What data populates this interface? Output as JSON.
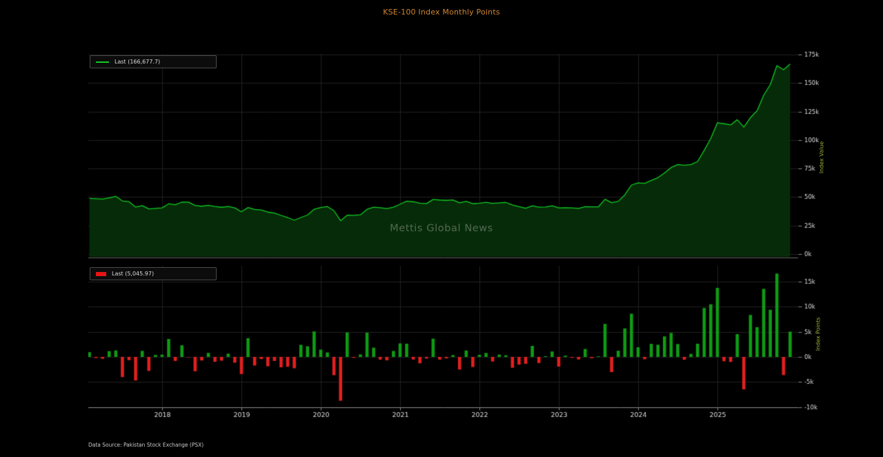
{
  "title": "KSE-100 Index Monthly Points",
  "watermark": "Mettis Global News",
  "footer": "Data Source: Pakistan Stock Exchange (PSX)",
  "panels": {
    "price": {
      "legend_label": "Last (166,677.7)",
      "ylabel": "Index Value"
    },
    "change": {
      "legend_label": "Last (5,045.97)",
      "ylabel": "Index Points"
    }
  },
  "colors": {
    "background": "#000000",
    "title": "#cf8532",
    "line": "#10cd24",
    "area_fill": "#062b08",
    "bar_up": "#0f9b14",
    "bar_down": "#e31f1f",
    "grid": "#202020",
    "spine": "#8c8c8c",
    "tick_label": "#dcdcdc",
    "axis_label": "#9aad3a"
  },
  "chart_data": [
    {
      "type": "line",
      "name": "KSE-100 monthly close (Index Value)",
      "start_month": "2017-01",
      "end_month": "2025-11",
      "frequency": "monthly",
      "prev_close": 47806.97,
      "last_value": 166677.7,
      "legend": "Last (166,677.7)",
      "ylabel": "Index Value",
      "ylim": [
        0,
        176000
      ],
      "ytick_values": [
        0,
        25000,
        50000,
        75000,
        100000,
        125000,
        150000,
        175000
      ],
      "ytick_labels": [
        "0k",
        "25k",
        "50k",
        "75k",
        "100k",
        "125k",
        "150k",
        "175k"
      ],
      "x_tick_years": [
        2018,
        2019,
        2020,
        2021,
        2022,
        2023,
        2024,
        2025
      ],
      "x_tick_labels": [
        "2018",
        "2019",
        "2020",
        "2021",
        "2022",
        "2023",
        "2024",
        "2025"
      ],
      "grid": true,
      "legend_position": "upper-left",
      "values": [
        48757.67,
        48534.34,
        48155.93,
        49300.91,
        50591.55,
        46565.29,
        45911.31,
        41207.22,
        42409.06,
        39616.58,
        40009.55,
        40471.48,
        44049.05,
        43239.22,
        45560.3,
        45488.16,
        42624.1,
        41910.9,
        42712.43,
        41742.2,
        40999.03,
        41649.36,
        40496.03,
        37066.67,
        40798.64,
        39077.75,
        38649.33,
        36784.29,
        35975.51,
        33901.58,
        31938.0,
        29672.12,
        32078.85,
        34203.67,
        39287.65,
        40735.08,
        41630.95,
        37983.62,
        29231.63,
        34111.64,
        33931.23,
        34421.92,
        39258.0,
        41110.96,
        40571.48,
        39888.0,
        41068.75,
        43755.38,
        46385.54,
        45865.02,
        44587.85,
        44262.35,
        47896.22,
        47356.02,
        47055.26,
        47419.87,
        44899.58,
        46184.86,
        44175.61,
        44596.07,
        45374.68,
        44461.0,
        44928.83,
        45249.4,
        43078.4,
        41540.83,
        40150.36,
        42351.12,
        41128.67,
        41264.72,
        42348.63,
        40420.45,
        40673.06,
        40510.2,
        40000.83,
        41580.85,
        41330.97,
        41452.69,
        48034.59,
        45002.41,
        46232.59,
        51920.27,
        60531.27,
        62451.04,
        61979.09,
        64578.26,
        67005.11,
        71102.57,
        75878.06,
        78444.96,
        77888.68,
        78488.23,
        81114.19,
        90859.51,
        101357.32,
        115126.9,
        114255.93,
        113252.05,
        117806.75,
        111326.58,
        119691.1,
        125627.31,
        139207.29,
        148617.66,
        165251.83,
        161631.73,
        166677.7
      ]
    },
    {
      "type": "bar",
      "name": "KSE-100 monthly change (Index Points)",
      "start_month": "2017-01",
      "end_month": "2025-11",
      "frequency": "monthly",
      "last_value": 5045.97,
      "legend": "Last (5,045.97)",
      "ylabel": "Index Points",
      "ylim": [
        -10300,
        18200
      ],
      "ytick_values": [
        -10000,
        -5000,
        0,
        5000,
        10000,
        15000
      ],
      "ytick_labels": [
        "-10k",
        "-5k",
        "0k",
        "5k",
        "10k",
        "15k"
      ],
      "x_tick_years": [
        2018,
        2019,
        2020,
        2021,
        2022,
        2023,
        2024,
        2025
      ],
      "x_tick_labels": [
        "2018",
        "2019",
        "2020",
        "2021",
        "2022",
        "2023",
        "2024",
        "2025"
      ],
      "grid": true,
      "legend_position": "upper-left",
      "values": [
        950.7,
        -223.33,
        -378.41,
        1144.98,
        1290.64,
        -4026.26,
        -653.98,
        -4704.09,
        1201.84,
        -2792.48,
        392.97,
        461.93,
        3577.57,
        -809.83,
        2321.08,
        -72.14,
        -2864.06,
        -713.2,
        801.53,
        -970.23,
        -743.17,
        650.33,
        -1153.33,
        -3429.36,
        3731.97,
        -1720.89,
        -428.42,
        -1865.04,
        -808.78,
        -2073.93,
        -1963.58,
        -2265.88,
        2406.73,
        2124.82,
        5083.98,
        1447.43,
        895.87,
        -3647.33,
        -8751.99,
        4880.01,
        -180.41,
        490.69,
        4836.08,
        1852.96,
        -539.48,
        -683.48,
        1180.75,
        2686.63,
        2630.16,
        -520.52,
        -1277.17,
        -325.5,
        3633.87,
        -540.2,
        -300.76,
        364.61,
        -2520.29,
        1285.28,
        -2009.25,
        420.46,
        778.61,
        -913.68,
        467.83,
        320.57,
        -2171.0,
        -1537.57,
        -1390.47,
        2200.76,
        -1222.45,
        136.05,
        1083.91,
        -1928.18,
        252.61,
        -162.86,
        -509.37,
        1580.02,
        -249.88,
        121.72,
        6581.9,
        -3032.18,
        1230.18,
        5687.68,
        8611.0,
        1919.77,
        -471.95,
        2599.17,
        2426.85,
        4097.46,
        4775.49,
        2566.9,
        -556.28,
        599.55,
        2625.96,
        9745.32,
        10497.81,
        13769.58,
        -870.97,
        -1003.88,
        4554.7,
        -6480.17,
        8364.52,
        5936.21,
        13579.98,
        9410.37,
        16634.17,
        -3620.1,
        5045.97
      ]
    }
  ]
}
